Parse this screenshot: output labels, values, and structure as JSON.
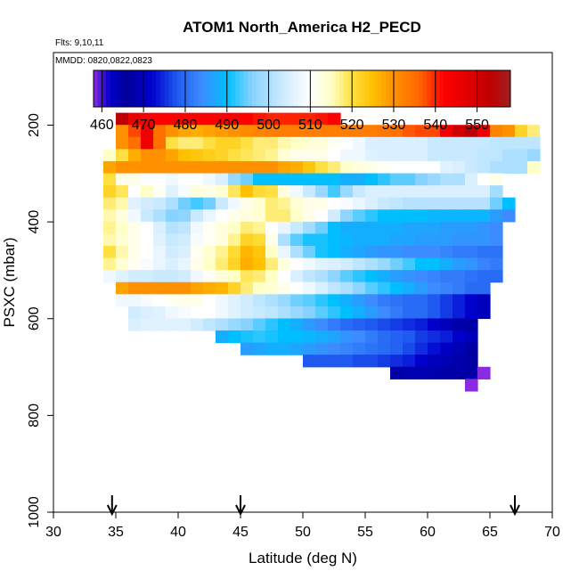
{
  "chart_data": {
    "type": "heatmap",
    "title": "ATOM1 North_America H2_PECD",
    "flights_note": "Flts: 9,10,11",
    "dates_note": "MMDD: 0820,0822,0823",
    "xlabel": "Latitude (deg N)",
    "ylabel": "PSXC (mbar)",
    "xlim": [
      30,
      70
    ],
    "ylim": [
      1000,
      50
    ],
    "x_ticks": [
      30,
      35,
      40,
      45,
      50,
      55,
      60,
      65,
      70
    ],
    "y_ticks": [
      200,
      400,
      600,
      800,
      1000
    ],
    "colorbar": {
      "min": 458,
      "max": 558,
      "ticks": [
        460,
        470,
        480,
        490,
        500,
        510,
        520,
        530,
        540,
        550
      ],
      "stops": [
        [
          458,
          "#8a2be2"
        ],
        [
          462,
          "#0000c8"
        ],
        [
          466,
          "#00009a"
        ],
        [
          472,
          "#0000cd"
        ],
        [
          478,
          "#1e5af0"
        ],
        [
          484,
          "#3c8cff"
        ],
        [
          490,
          "#00bfff"
        ],
        [
          496,
          "#87d2ff"
        ],
        [
          504,
          "#d2ecff"
        ],
        [
          510,
          "#ffffff"
        ],
        [
          515,
          "#ffffc8"
        ],
        [
          520,
          "#ffe040"
        ],
        [
          525,
          "#ffc000"
        ],
        [
          530,
          "#ff9000"
        ],
        [
          536,
          "#ff6a00"
        ],
        [
          542,
          "#ff0000"
        ],
        [
          548,
          "#e00000"
        ],
        [
          553,
          "#c00000"
        ],
        [
          558,
          "#a02020"
        ]
      ]
    },
    "cell_width_deg": 1,
    "cell_height_mbar": 25,
    "rows": [
      {
        "p": 187,
        "x0": 35,
        "x1": 53,
        "values": [
          553,
          545,
          543,
          542,
          542,
          542,
          542,
          542,
          542,
          542,
          542,
          541,
          540,
          540,
          540,
          540,
          541,
          542
        ]
      },
      {
        "p": 212,
        "x0": 35,
        "x1": 70,
        "values": [
          530,
          538,
          545,
          535,
          530,
          528,
          527,
          528,
          529,
          530,
          531,
          532,
          533,
          533,
          533,
          533,
          533,
          533,
          533,
          533,
          533,
          534,
          535,
          537,
          538,
          538,
          545,
          550,
          553,
          545,
          532,
          530,
          522,
          518,
          510
        ]
      },
      {
        "p": 237,
        "x0": 35,
        "x1": 69,
        "values": [
          530,
          535,
          545,
          535,
          520,
          518,
          518,
          520,
          522,
          522,
          520,
          518,
          518,
          516,
          515,
          514,
          513,
          511,
          510,
          508,
          505,
          505,
          505,
          505,
          505,
          503,
          503,
          503,
          503,
          503,
          502,
          502,
          502,
          502
        ]
      },
      {
        "p": 262,
        "x0": 34,
        "x1": 69,
        "values": [
          515,
          520,
          527,
          530,
          530,
          528,
          525,
          524,
          523,
          522,
          520,
          519,
          518,
          517,
          514,
          512,
          512,
          512,
          510,
          508,
          508,
          506,
          505,
          505,
          505,
          505,
          503,
          503,
          503,
          503,
          502,
          502,
          500,
          500,
          498
        ]
      },
      {
        "p": 287,
        "x0": 34,
        "x1": 69,
        "values": [
          528,
          530,
          530,
          530,
          530,
          530,
          530,
          530,
          530,
          530,
          530,
          530,
          530,
          530,
          528,
          527,
          524,
          520,
          518,
          515,
          513,
          512,
          511,
          510,
          510,
          510,
          510,
          506,
          505,
          503,
          502,
          500,
          500,
          500,
          515
        ]
      },
      {
        "p": 312,
        "x0": 34,
        "x1": 66,
        "values": [
          520,
          512,
          512,
          510,
          510,
          508,
          510,
          510,
          508,
          505,
          498,
          495,
          490,
          490,
          490,
          490,
          490,
          490,
          490,
          488,
          488,
          490,
          492,
          494,
          494,
          496,
          498,
          500,
          500,
          505,
          510,
          512
        ]
      },
      {
        "p": 337,
        "x0": 34,
        "x1": 66,
        "values": [
          522,
          519,
          510,
          515,
          511,
          506,
          509,
          513,
          512,
          514,
          519,
          525,
          521,
          520,
          513,
          508,
          503,
          498,
          493,
          498,
          503,
          505,
          505,
          505,
          505,
          505,
          505,
          505,
          505,
          505,
          505,
          499
        ]
      },
      {
        "p": 362,
        "x0": 34,
        "x1": 67,
        "values": [
          518,
          516,
          506,
          504,
          503,
          500,
          495,
          493,
          495,
          503,
          508,
          512,
          514,
          518,
          517,
          514,
          512,
          512,
          510,
          509,
          507,
          505,
          503,
          502,
          501,
          501,
          501,
          501,
          501,
          501,
          501,
          495,
          490
        ]
      },
      {
        "p": 387,
        "x0": 34,
        "x1": 67,
        "values": [
          516,
          513,
          508,
          503,
          500,
          496,
          497,
          503,
          507,
          510,
          512,
          513,
          514,
          518,
          518,
          515,
          512,
          510,
          504,
          497,
          494,
          492,
          490,
          490,
          490,
          490,
          489,
          489,
          489,
          489,
          489,
          486,
          484
        ]
      },
      {
        "p": 412,
        "x0": 34,
        "x1": 66,
        "values": [
          517,
          515,
          512,
          510,
          505,
          501,
          502,
          508,
          511,
          513,
          515,
          518,
          517,
          510,
          507,
          503,
          499,
          495,
          490,
          488,
          488,
          488,
          488,
          488,
          487,
          487,
          487,
          486,
          486,
          486,
          485,
          484
        ]
      },
      {
        "p": 437,
        "x0": 34,
        "x1": 66,
        "values": [
          516,
          514,
          512,
          510,
          506,
          503,
          504,
          509,
          511,
          513,
          517,
          522,
          521,
          512,
          500,
          494,
          491,
          491,
          490,
          489,
          488,
          488,
          488,
          487,
          487,
          486,
          486,
          486,
          485,
          485,
          485,
          484
        ]
      },
      {
        "p": 462,
        "x0": 34,
        "x1": 66,
        "values": [
          520,
          516,
          512,
          510,
          507,
          504,
          505,
          511,
          514,
          517,
          521,
          526,
          524,
          515,
          507,
          500,
          495,
          491,
          490,
          488,
          487,
          486,
          485,
          485,
          484,
          484,
          484,
          483,
          482,
          482,
          481,
          481
        ]
      },
      {
        "p": 487,
        "x0": 34,
        "x1": 66,
        "values": [
          517,
          514,
          511,
          509,
          507,
          505,
          507,
          512,
          515,
          518,
          522,
          527,
          525,
          518,
          513,
          510,
          508,
          506,
          505,
          504,
          502,
          500,
          498,
          495,
          493,
          490,
          490,
          488,
          486,
          485,
          483,
          482
        ]
      },
      {
        "p": 512,
        "x0": 34,
        "x1": 66,
        "values": [
          508,
          506,
          504,
          504,
          503,
          503,
          504,
          508,
          511,
          513,
          515,
          519,
          518,
          515,
          510,
          505,
          502,
          500,
          497,
          494,
          492,
          490,
          488,
          486,
          485,
          484,
          483,
          482,
          482,
          481,
          480,
          480
        ]
      },
      {
        "p": 537,
        "x0": 35,
        "x1": 65,
        "values": [
          528,
          530,
          530,
          530,
          530,
          530,
          528,
          527,
          526,
          522,
          518,
          515,
          514,
          512,
          510,
          508,
          505,
          502,
          500,
          497,
          494,
          492,
          490,
          488,
          486,
          484,
          483,
          482,
          480,
          480
        ]
      },
      {
        "p": 562,
        "x0": 35,
        "x1": 65,
        "values": [
          508,
          508,
          509,
          510,
          511,
          512,
          512,
          510,
          508,
          506,
          504,
          502,
          500,
          498,
          495,
          494,
          492,
          490,
          488,
          486,
          484,
          482,
          481,
          480,
          480,
          478,
          476,
          474,
          472,
          470
        ]
      },
      {
        "p": 587,
        "x0": 36,
        "x1": 65,
        "values": [
          504,
          505,
          506,
          508,
          509,
          510,
          510,
          508,
          506,
          504,
          503,
          502,
          500,
          498,
          496,
          494,
          492,
          490,
          488,
          486,
          484,
          482,
          480,
          480,
          478,
          476,
          474,
          472,
          470
        ]
      },
      {
        "p": 612,
        "x0": 36,
        "x1": 64,
        "values": [
          505,
          506,
          506,
          506,
          506,
          504,
          502,
          500,
          498,
          496,
          494,
          492,
          490,
          488,
          486,
          484,
          482,
          480,
          479,
          478,
          477,
          476,
          475,
          474,
          472,
          470,
          468,
          465
        ]
      },
      {
        "p": 637,
        "x0": 43,
        "x1": 64,
        "values": [
          488,
          490,
          491,
          492,
          491,
          490,
          490,
          489,
          488,
          487,
          485,
          484,
          482,
          480,
          479,
          478,
          476,
          475,
          474,
          472,
          470
        ]
      },
      {
        "p": 662,
        "x0": 45,
        "x1": 64,
        "values": [
          486,
          487,
          488,
          488,
          487,
          486,
          485,
          484,
          483,
          482,
          481,
          480,
          479,
          477,
          475,
          473,
          471,
          469,
          467
        ]
      },
      {
        "p": 687,
        "x0": 50,
        "x1": 64,
        "values": [
          478,
          478,
          478,
          478,
          477,
          477,
          476,
          475,
          474,
          472,
          470,
          469,
          468,
          467
        ]
      },
      {
        "p": 712,
        "x0": 57,
        "x1": 64,
        "values": [
          465,
          464,
          464,
          464,
          465,
          465,
          465,
          458
        ]
      },
      {
        "p": 737,
        "x0": 63,
        "x1": 64,
        "values": [
          458
        ]
      }
    ],
    "annotations": [
      {
        "type": "arrow",
        "x": 34.7
      },
      {
        "type": "arrow",
        "x": 45.0
      },
      {
        "type": "arrow",
        "x": 67.0
      }
    ]
  }
}
